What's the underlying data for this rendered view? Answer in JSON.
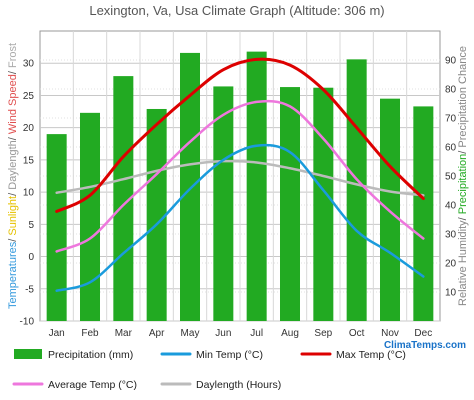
{
  "chart_data": {
    "type": "bar+line",
    "title": "Lexington, Va, Usa Climate Graph (Altitude: 306 m)",
    "categories": [
      "Jan",
      "Feb",
      "Mar",
      "Apr",
      "May",
      "Jun",
      "Jul",
      "Aug",
      "Sep",
      "Oct",
      "Nov",
      "Dec"
    ],
    "left_axis": {
      "ticks": [
        -10,
        -5,
        0,
        5,
        10,
        15,
        20,
        25,
        30
      ],
      "ylim": [
        -10,
        35
      ],
      "label_parts": [
        {
          "text": "Temperatures",
          "color": "#3399dd"
        },
        {
          "text": "/ ",
          "color": "#555555"
        },
        {
          "text": "Sunlight",
          "color": "#e6c200"
        },
        {
          "text": "/ ",
          "color": "#555555"
        },
        {
          "text": "Daylength",
          "color": "#999999"
        },
        {
          "text": "/ ",
          "color": "#555555"
        },
        {
          "text": "Wind Speed",
          "color": "#e05050"
        },
        {
          "text": "/ ",
          "color": "#555555"
        },
        {
          "text": "Frost",
          "color": "#aaaaaa"
        }
      ]
    },
    "right_axis": {
      "ticks": [
        10,
        20,
        30,
        40,
        50,
        60,
        70,
        80,
        90
      ],
      "ylim": [
        0,
        100
      ],
      "label_parts": [
        {
          "text": "Relative Humidity",
          "color": "#888888"
        },
        {
          "text": "/ ",
          "color": "#555555"
        },
        {
          "text": "Precipitation",
          "color": "#22aa22"
        },
        {
          "text": "/ ",
          "color": "#555555"
        },
        {
          "text": "Precipitation Chance",
          "color": "#888888"
        }
      ]
    },
    "grid": true,
    "series": [
      {
        "name": "Precipitation (mm)",
        "type": "bar",
        "axis": "left",
        "color": "#22aa22",
        "values": [
          19,
          22.3,
          28,
          22.9,
          31.6,
          26.4,
          31.8,
          26.3,
          26.2,
          30.6,
          24.5,
          23.3
        ]
      },
      {
        "name": "Min Temp (°C)",
        "type": "line",
        "axis": "left",
        "color": "#1a9bdc",
        "values": [
          -5.3,
          -4,
          0.5,
          5,
          10.5,
          15,
          17.2,
          16.2,
          10.3,
          4,
          0.6,
          -3.1
        ]
      },
      {
        "name": "Max Temp (°C)",
        "type": "line",
        "axis": "left",
        "color": "#dd0000",
        "values": [
          7,
          9.5,
          15.5,
          20.5,
          25,
          29,
          30.6,
          29.7,
          25.9,
          20,
          14,
          9
        ]
      },
      {
        "name": "Average Temp (°C)",
        "type": "line",
        "axis": "left",
        "color": "#ee77dd",
        "values": [
          0.8,
          2.8,
          8,
          12.8,
          17.8,
          22,
          24,
          23.3,
          18.3,
          12,
          7,
          2.8
        ]
      },
      {
        "name": "Daylength (Hours)",
        "type": "line",
        "axis": "left",
        "color": "#bbbbbb",
        "values": [
          9.9,
          10.8,
          12,
          13.3,
          14.3,
          14.8,
          14.6,
          13.7,
          12.5,
          11.2,
          10.1,
          9.5
        ]
      }
    ]
  },
  "brand": "ClimaTemps.com"
}
